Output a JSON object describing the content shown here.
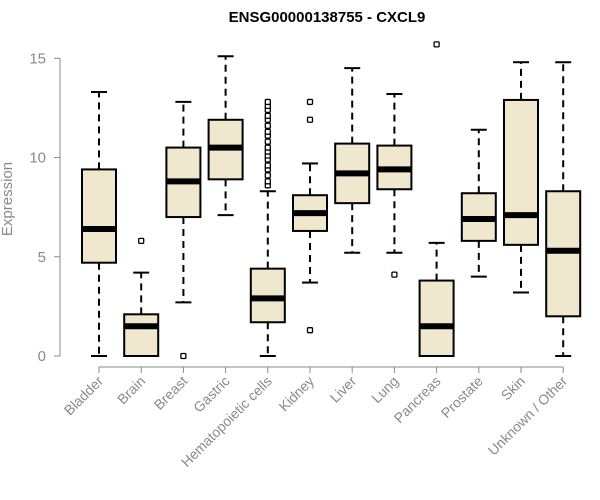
{
  "chart_data": {
    "type": "box",
    "title": "ENSG00000138755 - CXCL9",
    "xlabel": "",
    "ylabel": "Expression",
    "ylim": [
      0,
      15.5
    ],
    "yticks": [
      0,
      5,
      10,
      15
    ],
    "grid": false,
    "box_fill": "#efe8cf",
    "line_color": "#000000",
    "categories": [
      "Bladder",
      "Brain",
      "Breast",
      "Gastric",
      "Hematopoietic cells",
      "Kidney",
      "Liver",
      "Lung",
      "Pancreas",
      "Prostate",
      "Skin",
      "Unknown / Other"
    ],
    "boxes": [
      {
        "label": "Bladder",
        "whisker_low": 0.0,
        "q1": 4.7,
        "median": 6.4,
        "q3": 9.4,
        "whisker_high": 13.3,
        "outliers": []
      },
      {
        "label": "Brain",
        "whisker_low": 0.0,
        "q1": 0.0,
        "median": 1.5,
        "q3": 2.1,
        "whisker_high": 4.2,
        "outliers": [
          5.8
        ]
      },
      {
        "label": "Breast",
        "whisker_low": 2.7,
        "q1": 7.0,
        "median": 8.8,
        "q3": 10.5,
        "whisker_high": 12.8,
        "outliers": [
          0.0
        ]
      },
      {
        "label": "Gastric",
        "whisker_low": 7.1,
        "q1": 8.9,
        "median": 10.5,
        "q3": 11.9,
        "whisker_high": 15.1,
        "outliers": []
      },
      {
        "label": "Hematopoietic cells",
        "whisker_low": 0.0,
        "q1": 1.7,
        "median": 2.9,
        "q3": 4.4,
        "whisker_high": 8.3,
        "outliers": [
          8.6,
          8.8,
          9.1,
          9.4,
          9.6,
          9.9,
          10.1,
          10.3,
          10.5,
          10.8,
          11.1,
          11.3,
          11.6,
          11.9,
          12.1,
          12.4,
          12.6,
          12.8
        ]
      },
      {
        "label": "Kidney",
        "whisker_low": 3.7,
        "q1": 6.3,
        "median": 7.2,
        "q3": 8.1,
        "whisker_high": 9.7,
        "outliers": [
          1.3,
          11.9,
          12.8
        ]
      },
      {
        "label": "Liver",
        "whisker_low": 5.2,
        "q1": 7.7,
        "median": 9.2,
        "q3": 10.7,
        "whisker_high": 14.5,
        "outliers": []
      },
      {
        "label": "Lung",
        "whisker_low": 5.2,
        "q1": 8.4,
        "median": 9.4,
        "q3": 10.6,
        "whisker_high": 13.2,
        "outliers": [
          4.1
        ]
      },
      {
        "label": "Pancreas",
        "whisker_low": 0.0,
        "q1": 0.0,
        "median": 1.5,
        "q3": 3.8,
        "whisker_high": 5.7,
        "outliers": [
          15.7
        ]
      },
      {
        "label": "Prostate",
        "whisker_low": 4.0,
        "q1": 5.8,
        "median": 6.9,
        "q3": 8.2,
        "whisker_high": 11.4,
        "outliers": []
      },
      {
        "label": "Skin",
        "whisker_low": 3.2,
        "q1": 5.6,
        "median": 7.1,
        "q3": 12.9,
        "whisker_high": 14.8,
        "outliers": []
      },
      {
        "label": "Unknown / Other",
        "whisker_low": 0.0,
        "q1": 2.0,
        "median": 5.3,
        "q3": 8.3,
        "whisker_high": 14.8,
        "outliers": []
      }
    ]
  }
}
